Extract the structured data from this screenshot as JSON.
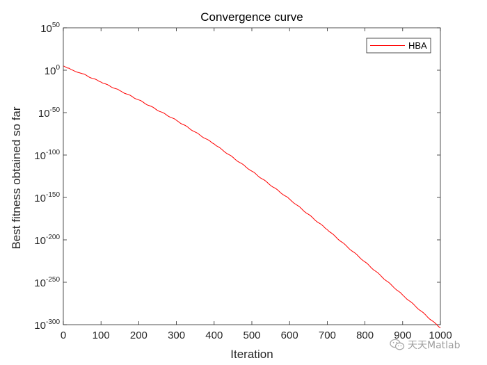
{
  "chart_data": {
    "type": "line",
    "title": "Convergence curve",
    "xlabel": "Iteration",
    "ylabel": "Best fitness obtained so far",
    "xlim": [
      0,
      1000
    ],
    "xticks": [
      0,
      100,
      200,
      300,
      400,
      500,
      600,
      700,
      800,
      900,
      1000
    ],
    "yscale": "log",
    "ylim_exponent": [
      -300,
      50
    ],
    "yticks_exponent": [
      50,
      0,
      -50,
      -100,
      -150,
      -200,
      -250,
      -300
    ],
    "ytick_base": "10",
    "grid": false,
    "legend_position": "top-right",
    "series": [
      {
        "name": "HBA",
        "color": "#ff0000",
        "x": [
          1,
          20,
          50,
          100,
          150,
          200,
          300,
          400,
          500,
          600,
          700,
          800,
          900,
          1000
        ],
        "log10_y": [
          5,
          1,
          -4,
          -14,
          -24,
          -35,
          -59,
          -87,
          -119,
          -152,
          -188,
          -226,
          -265,
          -304
        ]
      }
    ]
  },
  "watermark": {
    "text": "天天Matlab",
    "icon": "wechat-icon",
    "color": "#8c8c8c"
  }
}
